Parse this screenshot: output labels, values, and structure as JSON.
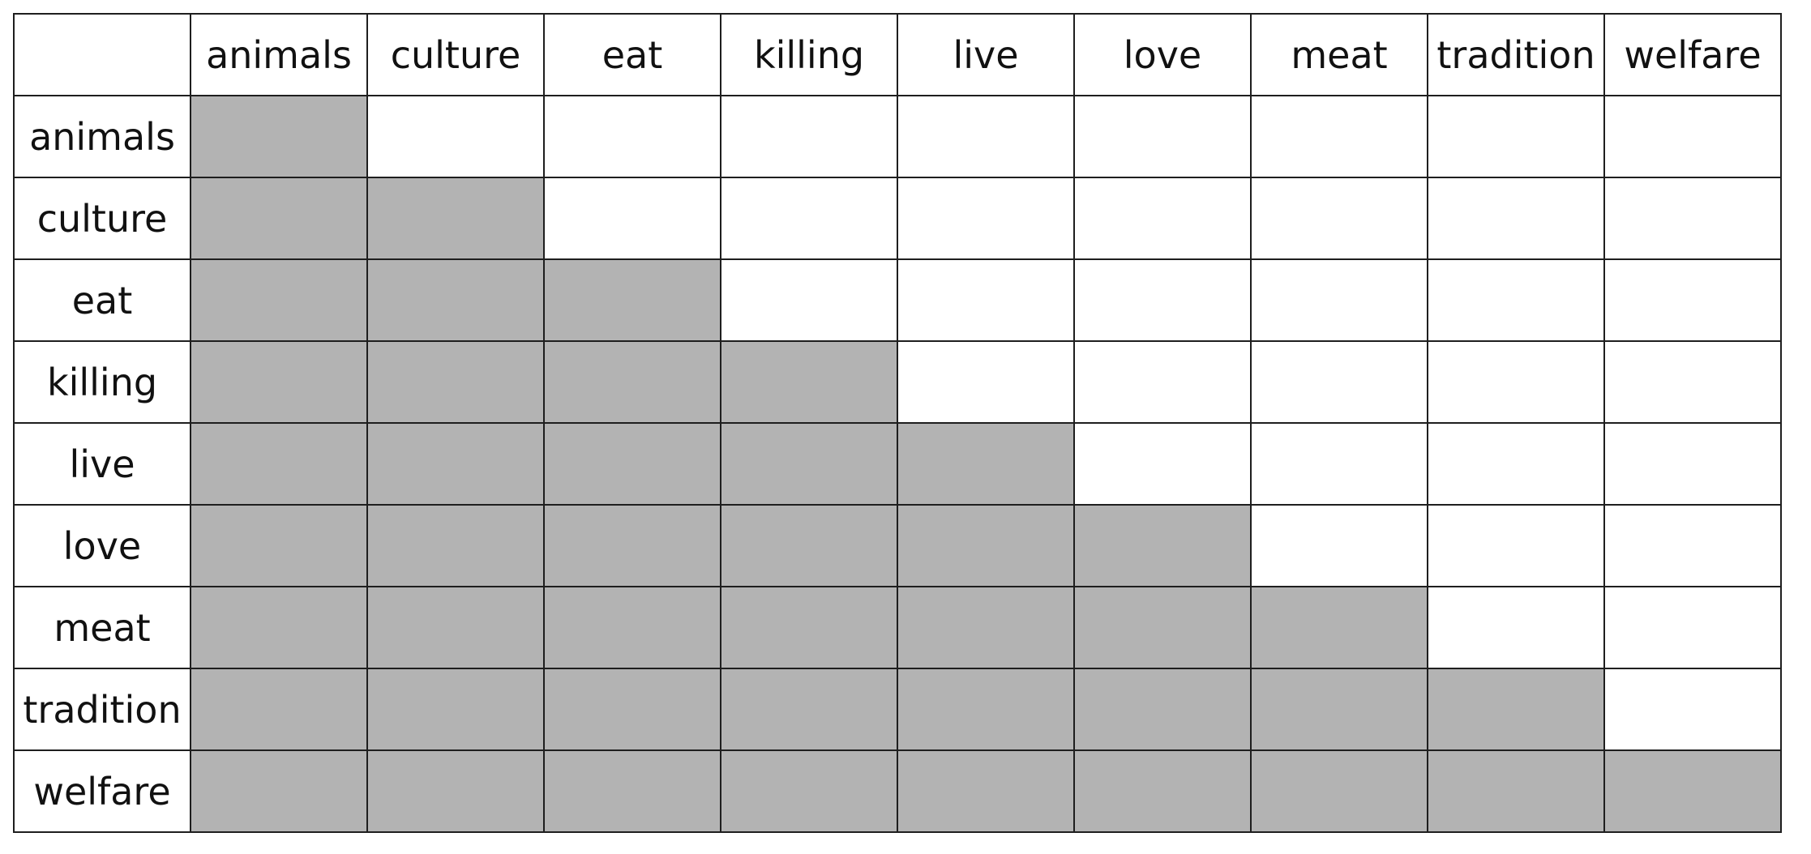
{
  "matrix": {
    "corner": "",
    "columns": [
      "animals",
      "culture",
      "eat",
      "killing",
      "live",
      "love",
      "meat",
      "tradition",
      "welfare"
    ],
    "rows": [
      "animals",
      "culture",
      "eat",
      "killing",
      "live",
      "love",
      "meat",
      "tradition",
      "welfare"
    ],
    "fill_rule": "lower-triangle-including-diagonal",
    "colors": {
      "filled": "#b3b3b3",
      "empty": "#ffffff",
      "grid_line": "#1e1e1e",
      "text": "#111111"
    }
  }
}
